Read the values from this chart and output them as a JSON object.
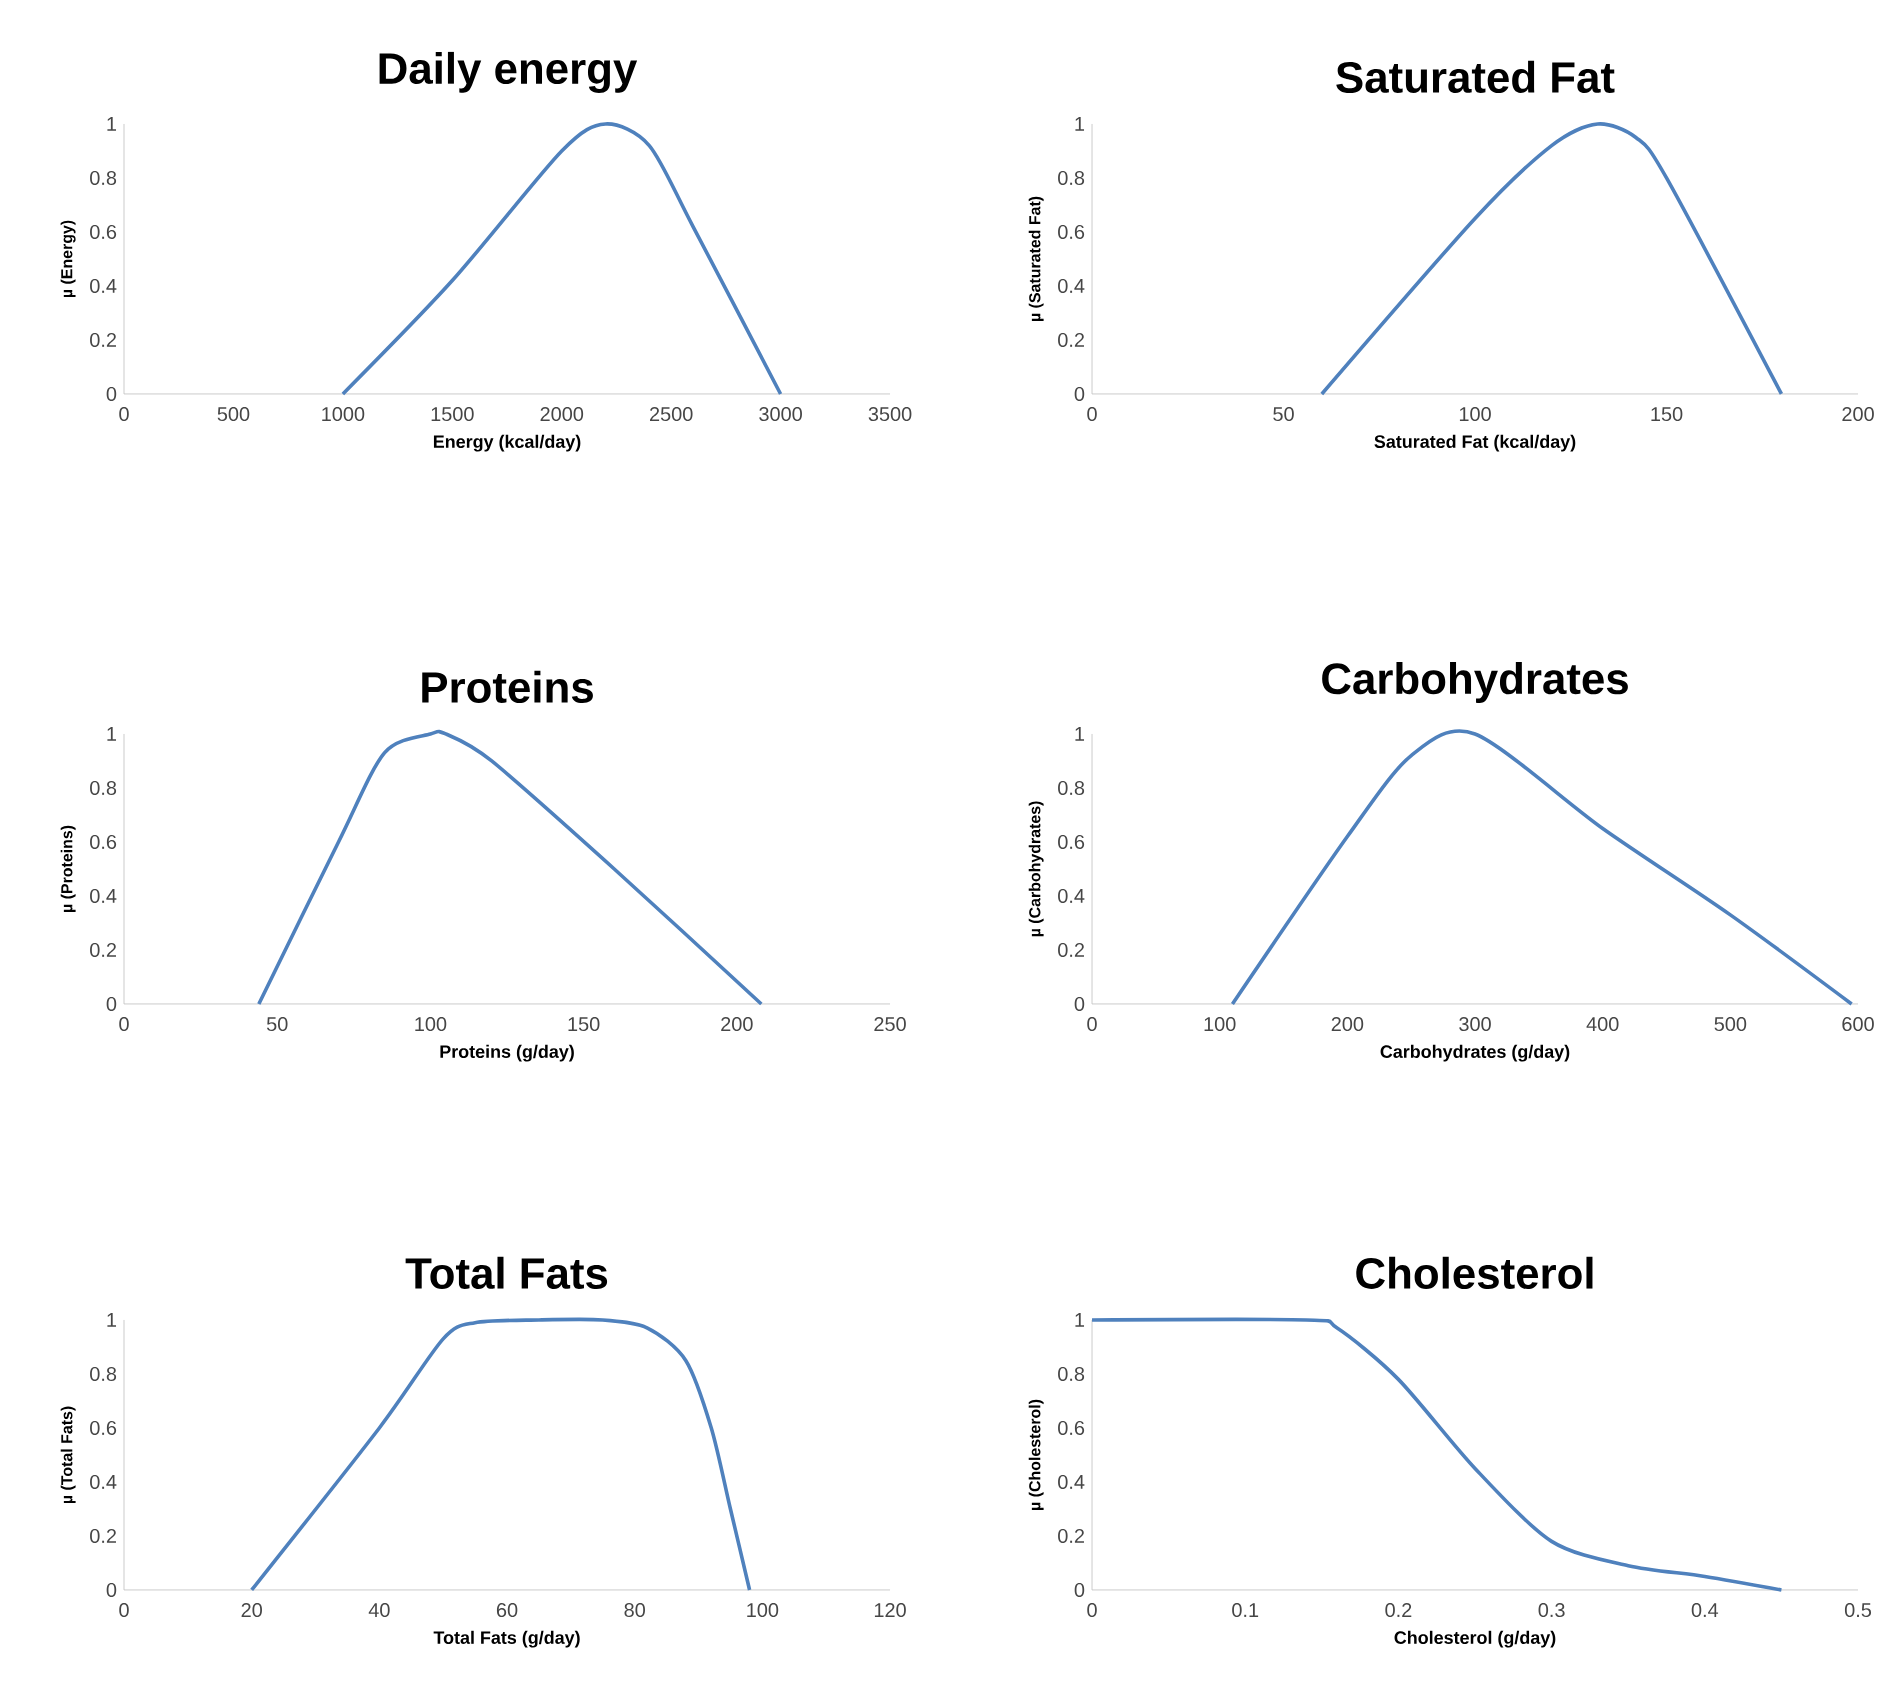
{
  "chart_data": [
    {
      "type": "line",
      "title": "Daily energy",
      "xlabel": "Energy (kcal/day)",
      "ylabel": "µ (Energy)",
      "color": "#4f81bd",
      "xlim": [
        0,
        3500
      ],
      "ylim": [
        0,
        1
      ],
      "xticks": [
        0,
        500,
        1000,
        1500,
        2000,
        2500,
        3000,
        3500
      ],
      "yticks": [
        0,
        0.2,
        0.4,
        0.6,
        0.8,
        1
      ],
      "x": [
        1000,
        1500,
        2000,
        2200,
        2400,
        2600,
        3000
      ],
      "values": [
        0,
        0.42,
        0.9,
        1,
        0.92,
        0.62,
        0
      ]
    },
    {
      "type": "line",
      "title": "Saturated Fat",
      "xlabel": "Saturated Fat (kcal/day)",
      "ylabel": "µ (Saturated Fat)",
      "color": "#4f81bd",
      "xlim": [
        0,
        200
      ],
      "ylim": [
        0,
        1
      ],
      "xticks": [
        0,
        50,
        100,
        150,
        200
      ],
      "yticks": [
        0,
        0.2,
        0.4,
        0.6,
        0.8,
        1
      ],
      "x": [
        60,
        100,
        120,
        132,
        142,
        150,
        180
      ],
      "values": [
        0,
        0.65,
        0.92,
        1,
        0.95,
        0.8,
        0
      ]
    },
    {
      "type": "line",
      "title": "Proteins",
      "xlabel": "Proteins (g/day)",
      "ylabel": "µ (Proteins)",
      "color": "#4f81bd",
      "xlim": [
        0,
        250
      ],
      "ylim": [
        0,
        1
      ],
      "xticks": [
        0,
        50,
        100,
        150,
        200,
        250
      ],
      "yticks": [
        0,
        0.2,
        0.4,
        0.6,
        0.8,
        1
      ],
      "x": [
        44,
        70,
        85,
        100,
        105,
        120,
        160,
        208
      ],
      "values": [
        0,
        0.6,
        0.93,
        1,
        1,
        0.9,
        0.5,
        0
      ]
    },
    {
      "type": "line",
      "title": "Carbohydrates",
      "xlabel": "Carbohydrates (g/day)",
      "ylabel": "µ (Carbohydrates)",
      "color": "#4f81bd",
      "xlim": [
        0,
        600
      ],
      "ylim": [
        0,
        1
      ],
      "xticks": [
        0,
        100,
        200,
        300,
        400,
        500,
        600
      ],
      "yticks": [
        0,
        0.2,
        0.4,
        0.6,
        0.8,
        1
      ],
      "x": [
        110,
        200,
        250,
        300,
        400,
        500,
        595
      ],
      "values": [
        0,
        0.62,
        0.92,
        1,
        0.65,
        0.33,
        0
      ]
    },
    {
      "type": "line",
      "title": "Total Fats",
      "xlabel": "Total Fats (g/day)",
      "ylabel": "µ (Total Fats)",
      "color": "#4f81bd",
      "xlim": [
        0,
        120
      ],
      "ylim": [
        0,
        1
      ],
      "xticks": [
        0,
        20,
        40,
        60,
        80,
        100,
        120
      ],
      "yticks": [
        0,
        0.2,
        0.4,
        0.6,
        0.8,
        1
      ],
      "x": [
        20,
        40,
        50,
        55,
        65,
        75,
        82,
        88,
        92,
        95,
        98
      ],
      "values": [
        0,
        0.6,
        0.93,
        0.99,
        1,
        1,
        0.97,
        0.85,
        0.6,
        0.3,
        0
      ]
    },
    {
      "type": "line",
      "title": "Cholesterol",
      "xlabel": "Cholesterol (g/day)",
      "ylabel": "µ (Cholesterol)",
      "color": "#4f81bd",
      "xlim": [
        0,
        0.5
      ],
      "ylim": [
        0,
        1
      ],
      "xticks": [
        0,
        0.1,
        0.2,
        0.3,
        0.4,
        0.5
      ],
      "yticks": [
        0,
        0.2,
        0.4,
        0.6,
        0.8,
        1
      ],
      "x": [
        0,
        0.14,
        0.16,
        0.2,
        0.25,
        0.3,
        0.35,
        0.4,
        0.45
      ],
      "values": [
        1,
        1,
        0.97,
        0.78,
        0.45,
        0.18,
        0.09,
        0.05,
        0
      ]
    }
  ]
}
